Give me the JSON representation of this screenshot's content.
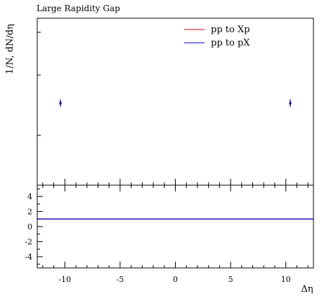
{
  "chart_data": [
    {
      "panel": "main",
      "type": "scatter",
      "title": "Large Rapidity Gap",
      "ylabel": "1/N, dN/dη",
      "xlim": [
        -12.5,
        12.5
      ],
      "x": [
        -10.4,
        10.4
      ],
      "legend_position": "top-right",
      "series": [
        {
          "name": "pp to Xp",
          "color": "#cc0000",
          "marker": "error-bar",
          "points": [
            {
              "x": -10.4,
              "y": 0.5
            },
            {
              "x": 10.4,
              "y": 0.5
            }
          ]
        },
        {
          "name": "pp to pX",
          "color": "#0000cc",
          "marker": "error-bar",
          "points": [
            {
              "x": -10.4,
              "y": 0.5
            },
            {
              "x": 10.4,
              "y": 0.5
            }
          ]
        }
      ],
      "grid": false
    },
    {
      "panel": "ratio",
      "type": "line",
      "xlabel": "Δη",
      "xlim": [
        -12.5,
        12.5
      ],
      "ylim": [
        -5.5,
        5.5
      ],
      "yticks": [
        "4",
        "2",
        "0",
        "-2",
        "-4"
      ],
      "xticks": [
        "-10",
        "-5",
        "0",
        "5",
        "10"
      ],
      "series": [
        {
          "name": "pp to Xp",
          "color": "#cc0000",
          "x": [
            -12.5,
            12.5
          ],
          "y": [
            1,
            1
          ]
        },
        {
          "name": "pp to pX",
          "color": "#0000cc",
          "x": [
            -12.5,
            12.5
          ],
          "y": [
            1,
            1
          ]
        }
      ],
      "grid": false
    }
  ]
}
